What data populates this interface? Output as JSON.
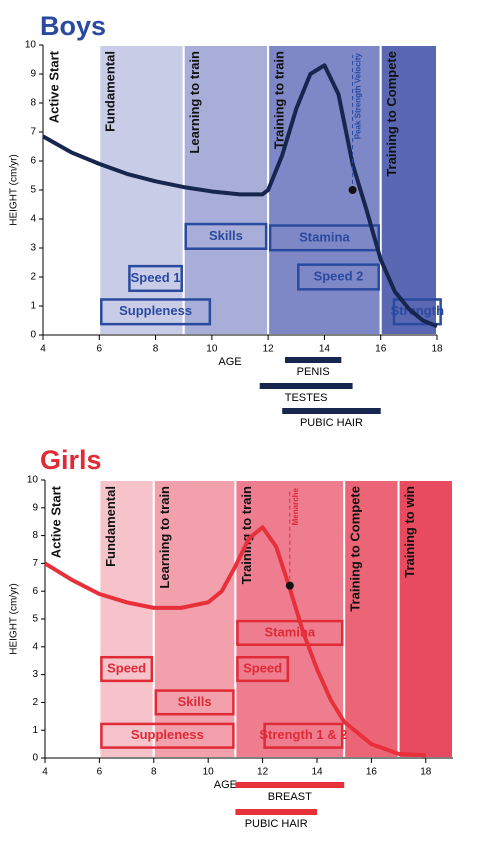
{
  "chart_data": [
    {
      "type": "line",
      "title": "Boys",
      "y_label": "HEIGHT (cm/yr)",
      "x_label": "AGE",
      "xlim": [
        4,
        18
      ],
      "ylim": [
        0,
        10
      ],
      "xticks": [
        4,
        6,
        8,
        10,
        12,
        14,
        16,
        18
      ],
      "yticks": [
        0,
        1,
        2,
        3,
        4,
        5,
        6,
        7,
        8,
        9,
        10
      ],
      "color": "#17264f",
      "accent": "#2a4aa0",
      "x": [
        4,
        5,
        6,
        7,
        8,
        9,
        10,
        11,
        11.8,
        12,
        12.5,
        13,
        13.5,
        14,
        14.5,
        15,
        15.5,
        16,
        16.5,
        17,
        17.5,
        18
      ],
      "values": [
        6.85,
        6.3,
        5.9,
        5.55,
        5.3,
        5.1,
        4.95,
        4.85,
        4.85,
        5.0,
        6.2,
        7.8,
        9.0,
        9.3,
        8.3,
        5.9,
        4.3,
        2.6,
        1.5,
        0.9,
        0.5,
        0.3
      ],
      "stages": [
        {
          "label": "Active Start",
          "start": 4,
          "end": 6,
          "color": "#ffffff"
        },
        {
          "label": "Fundamental",
          "start": 6,
          "end": 9,
          "color": "#c9cce6"
        },
        {
          "label": "Learning to train",
          "start": 9,
          "end": 12,
          "color": "#a8aed8"
        },
        {
          "label": "Training to train",
          "start": 12,
          "end": 16,
          "color": "#7e88c7"
        },
        {
          "label": "Training to  Compete",
          "start": 16,
          "end": 18,
          "color": "#5a67b3"
        }
      ],
      "windows": [
        {
          "label": "Speed 1",
          "start": 7,
          "end": 9,
          "level": 1.95
        },
        {
          "label": "Suppleness",
          "start": 6,
          "end": 10,
          "level": 0.8
        },
        {
          "label": "Skills",
          "start": 9,
          "end": 12,
          "level": 3.4
        },
        {
          "label": "Stamina",
          "start": 12,
          "end": 16,
          "level": 3.35
        },
        {
          "label": "Speed 2",
          "start": 13,
          "end": 16,
          "level": 2.0
        },
        {
          "label": "Strength",
          "start": 16.4,
          "end": 18.2,
          "level": 0.8
        }
      ],
      "marker": {
        "label": "Peak Strength Velocity",
        "x": 15,
        "y": 5
      },
      "maturation": [
        {
          "label": "PENIS",
          "start": 12.6,
          "end": 14.6
        },
        {
          "label": "TESTES",
          "start": 11.7,
          "end": 15
        },
        {
          "label": "PUBIC HAIR",
          "start": 12.5,
          "end": 16
        }
      ]
    },
    {
      "type": "line",
      "title": "Girls",
      "y_label": "HEIGHT (cm/yr)",
      "x_label": "AGE",
      "xlim": [
        4,
        19
      ],
      "ylim": [
        0,
        10
      ],
      "xticks": [
        4,
        6,
        8,
        10,
        12,
        14,
        16,
        18
      ],
      "yticks": [
        0,
        1,
        2,
        3,
        4,
        5,
        6,
        7,
        8,
        9,
        10
      ],
      "color": "#e8303b",
      "accent": "#e02a36",
      "x": [
        4,
        5,
        6,
        7,
        8,
        9,
        10,
        10.5,
        11,
        11.5,
        12,
        12.5,
        13,
        13.5,
        14,
        14.5,
        15,
        16,
        17,
        18
      ],
      "values": [
        7.0,
        6.4,
        5.9,
        5.6,
        5.4,
        5.4,
        5.6,
        6.0,
        6.9,
        7.9,
        8.3,
        7.6,
        6.1,
        4.5,
        3.2,
        2.1,
        1.3,
        0.5,
        0.15,
        0.1
      ],
      "stages": [
        {
          "label": "Active Start",
          "start": 4,
          "end": 6,
          "color": "#ffffff"
        },
        {
          "label": "Fundamental",
          "start": 6,
          "end": 8,
          "color": "#f6c3ca"
        },
        {
          "label": "Learning to train",
          "start": 8,
          "end": 11,
          "color": "#f2a0ac"
        },
        {
          "label": "Training to train",
          "start": 11,
          "end": 15,
          "color": "#ee7e8f"
        },
        {
          "label": "Training to  Compete",
          "start": 15,
          "end": 17,
          "color": "#ec6577"
        },
        {
          "label": "Training to win",
          "start": 17,
          "end": 19,
          "color": "#e84a5f"
        }
      ],
      "windows": [
        {
          "label": "Speed",
          "start": 6,
          "end": 8,
          "level": 3.2
        },
        {
          "label": "Skills",
          "start": 8,
          "end": 11,
          "level": 2.0
        },
        {
          "label": "Suppleness",
          "start": 6,
          "end": 11,
          "level": 0.8
        },
        {
          "label": "Stamina",
          "start": 11,
          "end": 15,
          "level": 4.5
        },
        {
          "label": "Speed",
          "start": 11,
          "end": 13,
          "level": 3.2
        },
        {
          "label": "Strength 1 & 2",
          "start": 12,
          "end": 15,
          "level": 0.8
        }
      ],
      "marker": {
        "label": "Menarche",
        "x": 13,
        "y": 6.2
      },
      "maturation": [
        {
          "label": "BREAST",
          "start": 11,
          "end": 15
        },
        {
          "label": "PUBIC HAIR",
          "start": 11,
          "end": 14
        }
      ]
    }
  ]
}
